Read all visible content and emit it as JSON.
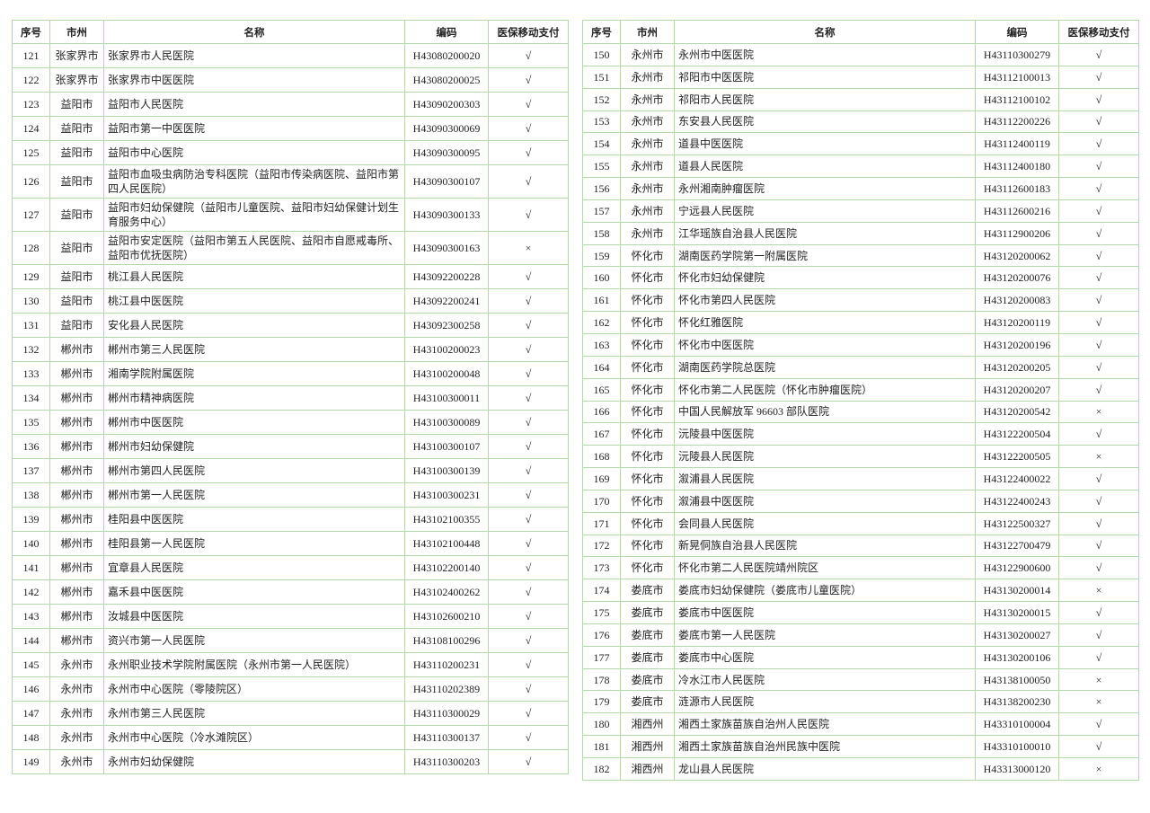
{
  "tables": [
    {
      "header": [
        "序号",
        "市州",
        "名称",
        "编码",
        "医保移动支付"
      ],
      "rows": [
        [
          "121",
          "张家界市",
          "张家界市人民医院",
          "H43080200020",
          "√"
        ],
        [
          "122",
          "张家界市",
          "张家界市中医医院",
          "H43080200025",
          "√"
        ],
        [
          "123",
          "益阳市",
          "益阳市人民医院",
          "H43090200303",
          "√"
        ],
        [
          "124",
          "益阳市",
          "益阳市第一中医医院",
          "H43090300069",
          "√"
        ],
        [
          "125",
          "益阳市",
          "益阳市中心医院",
          "H43090300095",
          "√"
        ],
        [
          "126",
          "益阳市",
          "益阳市血吸虫病防治专科医院（益阳市传染病医院、益阳市第四人民医院）",
          "H43090300107",
          "√"
        ],
        [
          "127",
          "益阳市",
          "益阳市妇幼保健院（益阳市儿童医院、益阳市妇幼保健计划生育服务中心）",
          "H43090300133",
          "√"
        ],
        [
          "128",
          "益阳市",
          "益阳市安定医院（益阳市第五人民医院、益阳市自愿戒毒所、益阳市优抚医院）",
          "H43090300163",
          "×"
        ],
        [
          "129",
          "益阳市",
          "桃江县人民医院",
          "H43092200228",
          "√"
        ],
        [
          "130",
          "益阳市",
          "桃江县中医医院",
          "H43092200241",
          "√"
        ],
        [
          "131",
          "益阳市",
          "安化县人民医院",
          "H43092300258",
          "√"
        ],
        [
          "132",
          "郴州市",
          "郴州市第三人民医院",
          "H43100200023",
          "√"
        ],
        [
          "133",
          "郴州市",
          "湘南学院附属医院",
          "H43100200048",
          "√"
        ],
        [
          "134",
          "郴州市",
          "郴州市精神病医院",
          "H43100300011",
          "√"
        ],
        [
          "135",
          "郴州市",
          "郴州市中医医院",
          "H43100300089",
          "√"
        ],
        [
          "136",
          "郴州市",
          "郴州市妇幼保健院",
          "H43100300107",
          "√"
        ],
        [
          "137",
          "郴州市",
          "郴州市第四人民医院",
          "H43100300139",
          "√"
        ],
        [
          "138",
          "郴州市",
          "郴州市第一人民医院",
          "H43100300231",
          "√"
        ],
        [
          "139",
          "郴州市",
          "桂阳县中医医院",
          "H43102100355",
          "√"
        ],
        [
          "140",
          "郴州市",
          "桂阳县第一人民医院",
          "H43102100448",
          "√"
        ],
        [
          "141",
          "郴州市",
          "宜章县人民医院",
          "H43102200140",
          "√"
        ],
        [
          "142",
          "郴州市",
          "嘉禾县中医医院",
          "H43102400262",
          "√"
        ],
        [
          "143",
          "郴州市",
          "汝城县中医医院",
          "H43102600210",
          "√"
        ],
        [
          "144",
          "郴州市",
          "资兴市第一人民医院",
          "H43108100296",
          "√"
        ],
        [
          "145",
          "永州市",
          "永州职业技术学院附属医院（永州市第一人民医院）",
          "H43110200231",
          "√"
        ],
        [
          "146",
          "永州市",
          "永州市中心医院（零陵院区）",
          "H43110202389",
          "√"
        ],
        [
          "147",
          "永州市",
          "永州市第三人民医院",
          "H43110300029",
          "√"
        ],
        [
          "148",
          "永州市",
          "永州市中心医院（冷水滩院区）",
          "H43110300137",
          "√"
        ],
        [
          "149",
          "永州市",
          "永州市妇幼保健院",
          "H43110300203",
          "√"
        ]
      ]
    },
    {
      "header": [
        "序号",
        "市州",
        "名称",
        "编码",
        "医保移动支付"
      ],
      "rows": [
        [
          "150",
          "永州市",
          "永州市中医医院",
          "H43110300279",
          "√"
        ],
        [
          "151",
          "永州市",
          "祁阳市中医医院",
          "H43112100013",
          "√"
        ],
        [
          "152",
          "永州市",
          "祁阳市人民医院",
          "H43112100102",
          "√"
        ],
        [
          "153",
          "永州市",
          "东安县人民医院",
          "H43112200226",
          "√"
        ],
        [
          "154",
          "永州市",
          "道县中医医院",
          "H43112400119",
          "√"
        ],
        [
          "155",
          "永州市",
          "道县人民医院",
          "H43112400180",
          "√"
        ],
        [
          "156",
          "永州市",
          "永州湘南肿瘤医院",
          "H43112600183",
          "√"
        ],
        [
          "157",
          "永州市",
          "宁远县人民医院",
          "H43112600216",
          "√"
        ],
        [
          "158",
          "永州市",
          "江华瑶族自治县人民医院",
          "H43112900206",
          "√"
        ],
        [
          "159",
          "怀化市",
          "湖南医药学院第一附属医院",
          "H43120200062",
          "√"
        ],
        [
          "160",
          "怀化市",
          "怀化市妇幼保健院",
          "H43120200076",
          "√"
        ],
        [
          "161",
          "怀化市",
          "怀化市第四人民医院",
          "H43120200083",
          "√"
        ],
        [
          "162",
          "怀化市",
          "怀化红雅医院",
          "H43120200119",
          "√"
        ],
        [
          "163",
          "怀化市",
          "怀化市中医医院",
          "H43120200196",
          "√"
        ],
        [
          "164",
          "怀化市",
          "湖南医药学院总医院",
          "H43120200205",
          "√"
        ],
        [
          "165",
          "怀化市",
          "怀化市第二人民医院（怀化市肿瘤医院）",
          "H43120200207",
          "√"
        ],
        [
          "166",
          "怀化市",
          "中国人民解放军 96603 部队医院",
          "H43120200542",
          "×"
        ],
        [
          "167",
          "怀化市",
          "沅陵县中医医院",
          "H43122200504",
          "√"
        ],
        [
          "168",
          "怀化市",
          "沅陵县人民医院",
          "H43122200505",
          "×"
        ],
        [
          "169",
          "怀化市",
          "溆浦县人民医院",
          "H43122400022",
          "√"
        ],
        [
          "170",
          "怀化市",
          "溆浦县中医医院",
          "H43122400243",
          "√"
        ],
        [
          "171",
          "怀化市",
          "会同县人民医院",
          "H43122500327",
          "√"
        ],
        [
          "172",
          "怀化市",
          "新晃侗族自治县人民医院",
          "H43122700479",
          "√"
        ],
        [
          "173",
          "怀化市",
          "怀化市第二人民医院靖州院区",
          "H43122900600",
          "√"
        ],
        [
          "174",
          "娄底市",
          "娄底市妇幼保健院（娄底市儿童医院）",
          "H43130200014",
          "×"
        ],
        [
          "175",
          "娄底市",
          "娄底市中医医院",
          "H43130200015",
          "√"
        ],
        [
          "176",
          "娄底市",
          "娄底市第一人民医院",
          "H43130200027",
          "√"
        ],
        [
          "177",
          "娄底市",
          "娄底市中心医院",
          "H43130200106",
          "√"
        ],
        [
          "178",
          "娄底市",
          "冷水江市人民医院",
          "H43138100050",
          "×"
        ],
        [
          "179",
          "娄底市",
          "涟源市人民医院",
          "H43138200230",
          "×"
        ],
        [
          "180",
          "湘西州",
          "湘西土家族苗族自治州人民医院",
          "H43310100004",
          "√"
        ],
        [
          "181",
          "湘西州",
          "湘西土家族苗族自治州民族中医院",
          "H43310100010",
          "√"
        ],
        [
          "182",
          "湘西州",
          "龙山县人民医院",
          "H43313000120",
          "×"
        ]
      ]
    }
  ]
}
